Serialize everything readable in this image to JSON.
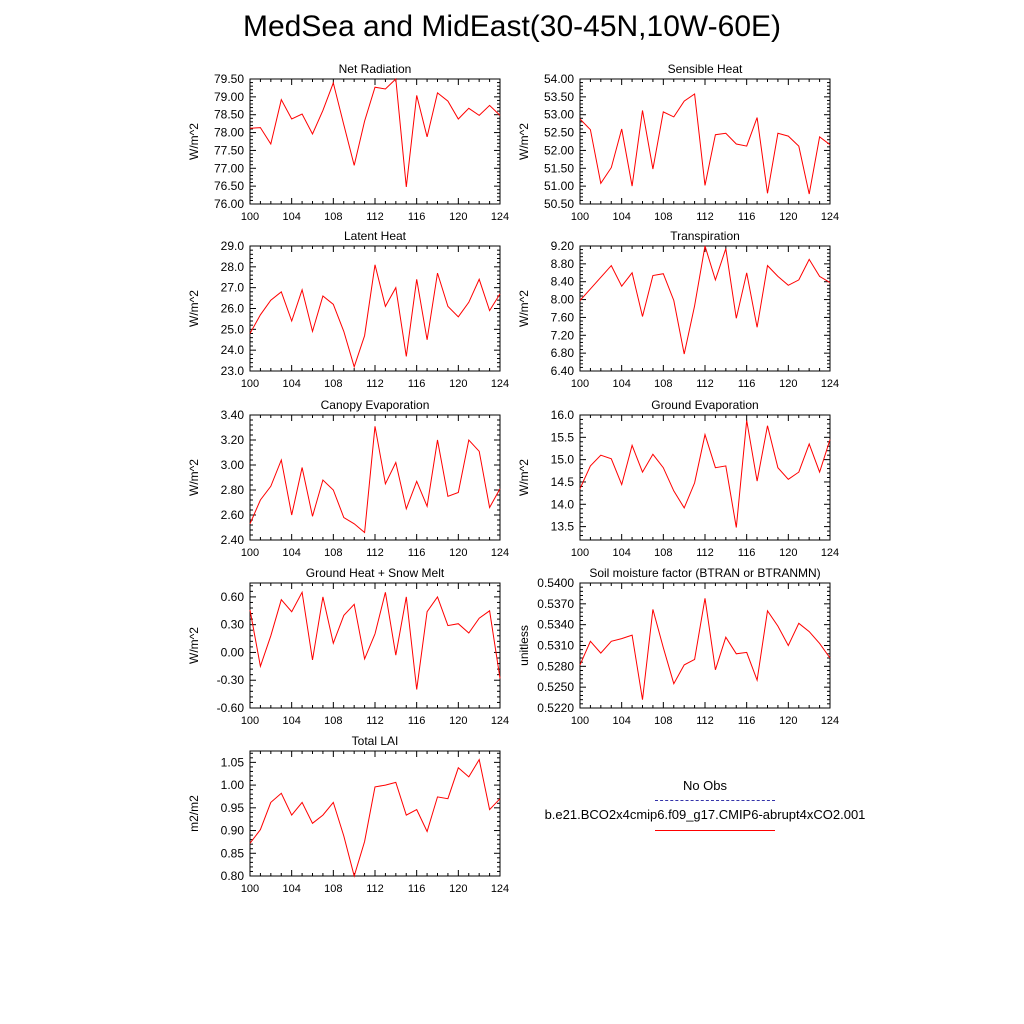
{
  "title": "MedSea and MidEast(30-45N,10W-60E)",
  "legend": {
    "obs_label": "No Obs",
    "model_label": "b.e21.BCO2x4cmip6.f09_g17.CMIP6-abrupt4xCO2.001",
    "obs_color": "#3333aa",
    "model_color": "#ff0000"
  },
  "chart_data": [
    {
      "type": "line",
      "title": "Net Radiation",
      "ylabel": "W/m^2",
      "xlim": [
        100,
        124
      ],
      "xticks": [
        "100",
        "104",
        "108",
        "112",
        "116",
        "120",
        "124"
      ],
      "ylim": [
        76.0,
        79.5
      ],
      "yticks": [
        "76.00",
        "76.50",
        "77.00",
        "77.50",
        "78.00",
        "78.50",
        "79.00",
        "79.50"
      ],
      "x": [
        100,
        101,
        102,
        103,
        104,
        105,
        106,
        107,
        108,
        109,
        110,
        111,
        112,
        113,
        114,
        115,
        116,
        117,
        118,
        119,
        120,
        121,
        122,
        123,
        124
      ],
      "series": [
        {
          "color": "#ff0000",
          "values": [
            78.12,
            78.14,
            77.68,
            78.92,
            78.38,
            78.52,
            77.96,
            78.62,
            79.39,
            78.22,
            77.08,
            78.32,
            79.27,
            79.22,
            79.5,
            76.48,
            79.04,
            77.88,
            79.11,
            78.88,
            78.38,
            78.68,
            78.48,
            78.76,
            78.48
          ]
        }
      ]
    },
    {
      "type": "line",
      "title": "Sensible Heat",
      "ylabel": "W/m^2",
      "xlim": [
        100,
        124
      ],
      "xticks": [
        "100",
        "104",
        "108",
        "112",
        "116",
        "120",
        "124"
      ],
      "ylim": [
        50.5,
        54.0
      ],
      "yticks": [
        "50.50",
        "51.00",
        "51.50",
        "52.00",
        "52.50",
        "53.00",
        "53.50",
        "54.00"
      ],
      "x": [
        100,
        101,
        102,
        103,
        104,
        105,
        106,
        107,
        108,
        109,
        110,
        111,
        112,
        113,
        114,
        115,
        116,
        117,
        118,
        119,
        120,
        121,
        122,
        123,
        124
      ],
      "series": [
        {
          "color": "#ff0000",
          "values": [
            52.88,
            52.58,
            51.08,
            51.52,
            52.6,
            51.0,
            53.12,
            51.48,
            53.08,
            52.94,
            53.38,
            53.58,
            51.02,
            52.44,
            52.48,
            52.18,
            52.12,
            52.92,
            50.8,
            52.48,
            52.4,
            52.12,
            50.78,
            52.38,
            52.16
          ]
        }
      ]
    },
    {
      "type": "line",
      "title": "Latent Heat",
      "ylabel": "W/m^2",
      "xlim": [
        100,
        124
      ],
      "xticks": [
        "100",
        "104",
        "108",
        "112",
        "116",
        "120",
        "124"
      ],
      "ylim": [
        23.0,
        29.0
      ],
      "yticks": [
        "23.0",
        "24.0",
        "25.0",
        "26.0",
        "27.0",
        "28.0",
        "29.0"
      ],
      "x": [
        100,
        101,
        102,
        103,
        104,
        105,
        106,
        107,
        108,
        109,
        110,
        111,
        112,
        113,
        114,
        115,
        116,
        117,
        118,
        119,
        120,
        121,
        122,
        123,
        124
      ],
      "series": [
        {
          "color": "#ff0000",
          "values": [
            24.8,
            25.7,
            26.4,
            26.8,
            25.4,
            26.9,
            24.9,
            26.6,
            26.2,
            24.9,
            23.2,
            24.7,
            28.1,
            26.1,
            27.0,
            23.7,
            27.4,
            24.5,
            27.7,
            26.1,
            25.6,
            26.3,
            27.4,
            25.9,
            26.7
          ]
        }
      ]
    },
    {
      "type": "line",
      "title": "Transpiration",
      "ylabel": "W/m^2",
      "xlim": [
        100,
        124
      ],
      "xticks": [
        "100",
        "104",
        "108",
        "112",
        "116",
        "120",
        "124"
      ],
      "ylim": [
        6.4,
        9.2
      ],
      "yticks": [
        "6.40",
        "6.80",
        "7.20",
        "7.60",
        "8.00",
        "8.40",
        "8.80",
        "9.20"
      ],
      "x": [
        100,
        101,
        102,
        103,
        104,
        105,
        106,
        107,
        108,
        109,
        110,
        111,
        112,
        113,
        114,
        115,
        116,
        117,
        118,
        119,
        120,
        121,
        122,
        123,
        124
      ],
      "series": [
        {
          "color": "#ff0000",
          "values": [
            7.98,
            8.24,
            8.5,
            8.76,
            8.3,
            8.6,
            7.62,
            8.54,
            8.58,
            7.98,
            6.78,
            7.86,
            9.22,
            8.44,
            9.14,
            7.58,
            8.6,
            7.38,
            8.76,
            8.52,
            8.32,
            8.44,
            8.9,
            8.52,
            8.38
          ]
        }
      ]
    },
    {
      "type": "line",
      "title": "Canopy Evaporation",
      "ylabel": "W/m^2",
      "xlim": [
        100,
        124
      ],
      "xticks": [
        "100",
        "104",
        "108",
        "112",
        "116",
        "120",
        "124"
      ],
      "ylim": [
        2.4,
        3.4
      ],
      "yticks": [
        "2.40",
        "2.60",
        "2.80",
        "3.00",
        "3.20",
        "3.40"
      ],
      "x": [
        100,
        101,
        102,
        103,
        104,
        105,
        106,
        107,
        108,
        109,
        110,
        111,
        112,
        113,
        114,
        115,
        116,
        117,
        118,
        119,
        120,
        121,
        122,
        123,
        124
      ],
      "series": [
        {
          "color": "#ff0000",
          "values": [
            2.53,
            2.72,
            2.83,
            3.04,
            2.6,
            2.98,
            2.59,
            2.88,
            2.8,
            2.58,
            2.53,
            2.46,
            3.31,
            2.85,
            3.02,
            2.65,
            2.87,
            2.67,
            3.2,
            2.75,
            2.78,
            3.2,
            3.11,
            2.66,
            2.81
          ]
        }
      ]
    },
    {
      "type": "line",
      "title": "Ground Evaporation",
      "ylabel": "W/m^2",
      "xlim": [
        100,
        124
      ],
      "xticks": [
        "100",
        "104",
        "108",
        "112",
        "116",
        "120",
        "124"
      ],
      "ylim": [
        13.2,
        16.0
      ],
      "yticks": [
        "13.5",
        "14.0",
        "14.5",
        "15.0",
        "15.5",
        "16.0"
      ],
      "x": [
        100,
        101,
        102,
        103,
        104,
        105,
        106,
        107,
        108,
        109,
        110,
        111,
        112,
        113,
        114,
        115,
        116,
        117,
        118,
        119,
        120,
        121,
        122,
        123,
        124
      ],
      "series": [
        {
          "color": "#ff0000",
          "values": [
            14.35,
            14.86,
            15.1,
            15.02,
            14.44,
            15.32,
            14.72,
            15.12,
            14.82,
            14.3,
            13.92,
            14.48,
            15.56,
            14.82,
            14.86,
            13.48,
            15.88,
            14.52,
            15.76,
            14.82,
            14.56,
            14.72,
            15.35,
            14.72,
            15.45
          ]
        }
      ]
    },
    {
      "type": "line",
      "title": "Ground Heat + Snow Melt",
      "ylabel": "W/m^2",
      "xlim": [
        100,
        124
      ],
      "xticks": [
        "100",
        "104",
        "108",
        "112",
        "116",
        "120",
        "124"
      ],
      "ylim": [
        -0.6,
        0.75
      ],
      "yticks": [
        "-0.60",
        "-0.30",
        "0.00",
        "0.30",
        "0.60"
      ],
      "x": [
        100,
        101,
        102,
        103,
        104,
        105,
        106,
        107,
        108,
        109,
        110,
        111,
        112,
        113,
        114,
        115,
        116,
        117,
        118,
        119,
        120,
        121,
        122,
        123,
        124
      ],
      "series": [
        {
          "color": "#ff0000",
          "values": [
            0.46,
            -0.15,
            0.18,
            0.57,
            0.44,
            0.65,
            -0.08,
            0.6,
            0.1,
            0.4,
            0.52,
            -0.07,
            0.2,
            0.65,
            -0.03,
            0.6,
            -0.4,
            0.44,
            0.6,
            0.29,
            0.31,
            0.21,
            0.37,
            0.45,
            -0.28
          ]
        }
      ]
    },
    {
      "type": "line",
      "title": "Soil moisture factor (BTRAN or BTRANMN)",
      "ylabel": "unitless",
      "xlim": [
        100,
        124
      ],
      "xticks": [
        "100",
        "104",
        "108",
        "112",
        "116",
        "120",
        "124"
      ],
      "ylim": [
        0.522,
        0.54
      ],
      "yticks": [
        "0.5220",
        "0.5250",
        "0.5280",
        "0.5310",
        "0.5340",
        "0.5370",
        "0.5400"
      ],
      "x": [
        100,
        101,
        102,
        103,
        104,
        105,
        106,
        107,
        108,
        109,
        110,
        111,
        112,
        113,
        114,
        115,
        116,
        117,
        118,
        119,
        120,
        121,
        122,
        123,
        124
      ],
      "series": [
        {
          "color": "#ff0000",
          "values": [
            0.5282,
            0.5316,
            0.5299,
            0.5316,
            0.532,
            0.5325,
            0.5232,
            0.5362,
            0.5307,
            0.5255,
            0.5282,
            0.529,
            0.5378,
            0.5275,
            0.5322,
            0.5298,
            0.53,
            0.526,
            0.536,
            0.5338,
            0.531,
            0.5342,
            0.533,
            0.5313,
            0.5292
          ]
        }
      ]
    },
    {
      "type": "line",
      "title": "Total LAI",
      "ylabel": "m2/m2",
      "xlim": [
        100,
        124
      ],
      "xticks": [
        "100",
        "104",
        "108",
        "112",
        "116",
        "120",
        "124"
      ],
      "ylim": [
        0.8,
        1.075
      ],
      "yticks": [
        "0.80",
        "0.85",
        "0.90",
        "0.95",
        "1.00",
        "1.05"
      ],
      "x": [
        100,
        101,
        102,
        103,
        104,
        105,
        106,
        107,
        108,
        109,
        110,
        111,
        112,
        113,
        114,
        115,
        116,
        117,
        118,
        119,
        120,
        121,
        122,
        123,
        124
      ],
      "series": [
        {
          "color": "#ff0000",
          "values": [
            0.872,
            0.902,
            0.962,
            0.982,
            0.934,
            0.962,
            0.916,
            0.934,
            0.962,
            0.888,
            0.8,
            0.876,
            0.996,
            1.0,
            1.006,
            0.934,
            0.946,
            0.898,
            0.974,
            0.97,
            1.038,
            1.018,
            1.056,
            0.946,
            0.97
          ]
        }
      ]
    }
  ]
}
